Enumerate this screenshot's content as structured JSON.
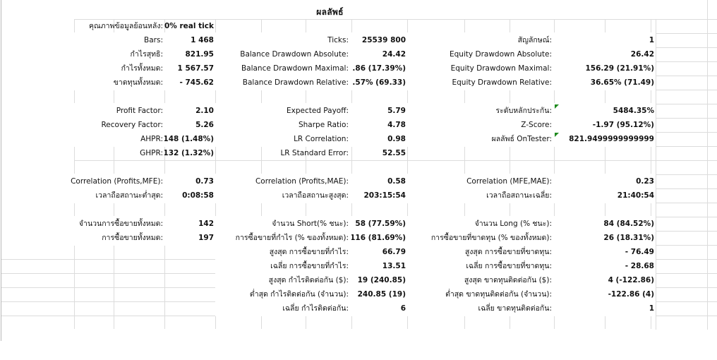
{
  "sheet": {
    "title": "ผลลัพธ์",
    "comment_indicator_color": "#1e8a1e",
    "rows": [
      {
        "row": 1,
        "cells": [
          {
            "group": "left",
            "label": "คุณภาพข้อมูลย้อนหลัง:",
            "value": "0% real tick"
          }
        ]
      },
      {
        "row": 2,
        "cells": [
          {
            "group": "left",
            "label": "Bars:",
            "value": "1 468"
          },
          {
            "group": "mid",
            "label": "Ticks:",
            "value": "25539 800"
          },
          {
            "group": "right",
            "label": "สัญลักษณ์:",
            "value": "1"
          }
        ]
      },
      {
        "row": 3,
        "cells": [
          {
            "group": "left",
            "label": "กำไรสุทธิ:",
            "value": "821.95"
          },
          {
            "group": "mid",
            "label": "Balance Drawdown Absolute:",
            "value": "24.42"
          },
          {
            "group": "right",
            "label": "Equity Drawdown Absolute:",
            "value": "26.42"
          }
        ]
      },
      {
        "row": 4,
        "cells": [
          {
            "group": "left",
            "label": "กำไรทั้งหมด:",
            "value": "1 567.57"
          },
          {
            "group": "mid",
            "label": "Balance Drawdown Maximal:",
            "value": ".86 (17.39%)"
          },
          {
            "group": "right",
            "label": "Equity Drawdown Maximal:",
            "value": "156.29 (21.91%)"
          }
        ]
      },
      {
        "row": 5,
        "cells": [
          {
            "group": "left",
            "label": "ขาดทุนทั้งหมด:",
            "value": "- 745.62"
          },
          {
            "group": "mid",
            "label": "Balance Drawdown Relative:",
            "value": ".57% (69.33)"
          },
          {
            "group": "right",
            "label": "Equity Drawdown Relative:",
            "value": "36.65% (71.49)"
          }
        ]
      },
      {
        "row": 7,
        "cells": [
          {
            "group": "left",
            "label": "Profit Factor:",
            "value": "2.10"
          },
          {
            "group": "mid",
            "label": "Expected Payoff:",
            "value": "5.79"
          },
          {
            "group": "right",
            "label": "ระดับหลักประกัน:",
            "value": "5484.35%",
            "comment": true
          }
        ]
      },
      {
        "row": 8,
        "cells": [
          {
            "group": "left",
            "label": "Recovery Factor:",
            "value": "5.26"
          },
          {
            "group": "mid",
            "label": "Sharpe Ratio:",
            "value": "4.78"
          },
          {
            "group": "right",
            "label": "Z-Score:",
            "value": "-1.97 (95.12%)"
          }
        ]
      },
      {
        "row": 9,
        "cells": [
          {
            "group": "left",
            "label": "AHPR:",
            "value": "148 (1.48%)"
          },
          {
            "group": "mid",
            "label": "LR Correlation:",
            "value": "0.98"
          },
          {
            "group": "right",
            "label": "ผลลัพธ์ OnTester:",
            "value": "821.9499999999999",
            "comment": true
          }
        ]
      },
      {
        "row": 10,
        "cells": [
          {
            "group": "left",
            "label": "GHPR:",
            "value": "132 (1.32%)"
          },
          {
            "group": "mid",
            "label": "LR Standard Error:",
            "value": "52.55"
          }
        ]
      },
      {
        "row": 12,
        "cells": [
          {
            "group": "left",
            "label": "Correlation (Profits,MFE):",
            "value": "0.73"
          },
          {
            "group": "mid",
            "label": "Correlation (Profits,MAE):",
            "value": "0.58"
          },
          {
            "group": "right",
            "label": "Correlation (MFE,MAE):",
            "value": "0.23"
          }
        ]
      },
      {
        "row": 13,
        "cells": [
          {
            "group": "left",
            "label": "เวลาถือสถานะต่ำสุด:",
            "value": "0:08:58"
          },
          {
            "group": "mid",
            "label": "เวลาถือสถานะสูงสุด:",
            "value": "203:15:54"
          },
          {
            "group": "right",
            "label": "เวลาถือสถานะเฉลี่ย:",
            "value": "21:40:54"
          }
        ]
      },
      {
        "row": 15,
        "cells": [
          {
            "group": "left",
            "label": "จำนวนการซื้อขายทั้งหมด:",
            "value": "142"
          },
          {
            "group": "mid",
            "label": "จำนวน Short(% ชนะ):",
            "value": "58 (77.59%)"
          },
          {
            "group": "right",
            "label": "จำนวน Long (% ชนะ):",
            "value": "84 (84.52%)"
          }
        ]
      },
      {
        "row": 16,
        "cells": [
          {
            "group": "left",
            "label": "การซื้อขายทั้งหมด:",
            "value": "197"
          },
          {
            "group": "mid",
            "label": "การซื้อขายที่กำไร (% ของทั้งหมด):",
            "value": "116 (81.69%)"
          },
          {
            "group": "right",
            "label": "การซื้อขายที่ขาดทุน (% ของทั้งหมด):",
            "value": "26 (18.31%)"
          }
        ]
      },
      {
        "row": 17,
        "cells": [
          {
            "group": "mid",
            "label": "สูงสุด การซื้อขายที่กำไร:",
            "value": "66.79"
          },
          {
            "group": "right",
            "label": "สูงสุด การซื้อขายที่ขาดทุน:",
            "value": "- 76.49"
          }
        ]
      },
      {
        "row": 18,
        "cells": [
          {
            "group": "mid",
            "label": "เฉลี่ย การซื้อขายที่กำไร:",
            "value": "13.51"
          },
          {
            "group": "right",
            "label": "เฉลี่ย การซื้อขายที่ขาดทุน:",
            "value": "- 28.68"
          }
        ]
      },
      {
        "row": 19,
        "cells": [
          {
            "group": "mid",
            "label": "สูงสุด กำไรติดต่อกัน ($):",
            "value": "19 (240.85)"
          },
          {
            "group": "right",
            "label": "สูงสุด ขาดทุนติดต่อกัน ($):",
            "value": "4 (-122.86)"
          }
        ]
      },
      {
        "row": 20,
        "cells": [
          {
            "group": "mid",
            "label": "ต่ำสุด กำไรติดต่อกัน (จำนวน):",
            "value": "240.85 (19)"
          },
          {
            "group": "right",
            "label": "ต่ำสุด ขาดทุนติดต่อกัน (จำนวน):",
            "value": "-122.86 (4)"
          }
        ]
      },
      {
        "row": 21,
        "cells": [
          {
            "group": "mid",
            "label": "เฉลี่ย กำไรติดต่อกัน:",
            "value": "6"
          },
          {
            "group": "right",
            "label": "เฉลี่ย ขาดทุนติดต่อกัน:",
            "value": "1"
          }
        ]
      }
    ]
  }
}
